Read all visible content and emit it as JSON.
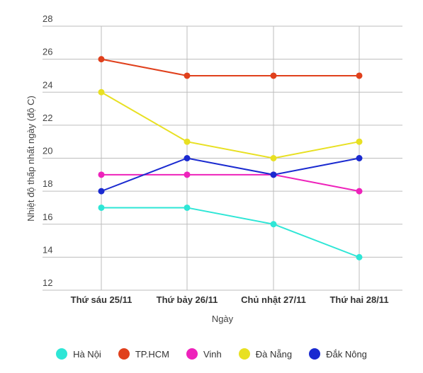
{
  "chart_data": {
    "type": "line",
    "categories": [
      "Thứ sáu 25/11",
      "Thứ bảy 26/11",
      "Chủ nhật 27/11",
      "Thứ hai 28/11"
    ],
    "series": [
      {
        "name": "Hà Nội",
        "color": "#2ee6d6",
        "values": [
          17,
          17,
          16,
          14
        ]
      },
      {
        "name": "TP.HCM",
        "color": "#e0401c",
        "values": [
          26,
          25,
          25,
          25
        ]
      },
      {
        "name": "Vinh",
        "color": "#ee22bb",
        "values": [
          19,
          19,
          19,
          18
        ]
      },
      {
        "name": "Đà Nẵng",
        "color": "#e8e022",
        "values": [
          24,
          21,
          20,
          21
        ]
      },
      {
        "name": "Đắk Nông",
        "color": "#1a2ad0",
        "values": [
          18,
          20,
          19,
          20
        ]
      }
    ],
    "xlabel": "Ngày",
    "ylabel": "Nhiệt độ thấp nhất ngày (độ C)",
    "ylim": [
      12,
      28
    ],
    "yticks": [
      12,
      14,
      16,
      18,
      20,
      22,
      24,
      26,
      28
    ],
    "grid": true,
    "legend_position": "bottom"
  }
}
